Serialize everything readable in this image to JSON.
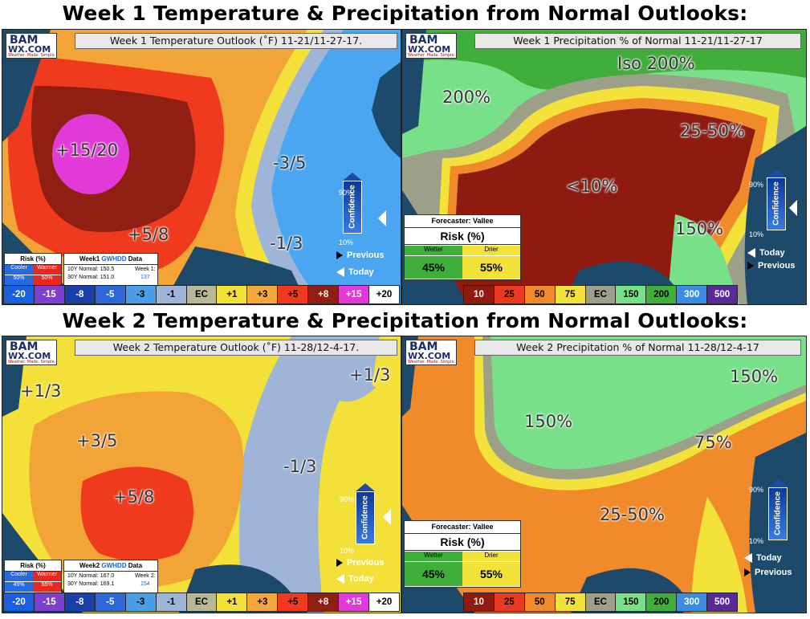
{
  "headings": {
    "week1": "Week 1 Temperature & Precipitation from Normal Outlooks:",
    "week2": "Week 2 Temperature & Precipitation from Normal Outlooks:"
  },
  "logo": {
    "line1": "BAM",
    "line2": "WX.COM",
    "tagline": "Weather. Made. Simple."
  },
  "panels": {
    "w1_temp": {
      "title": "Week 1 Temperature Outlook (˚F) 11-21/11-27-17.",
      "labels": [
        "+15/20",
        "+5/8",
        "-3/5",
        "-1/3"
      ],
      "risk": {
        "header": "Risk (%)",
        "cooler": "Cooler",
        "warmer": "Warmer",
        "cooler_val": "50%",
        "warmer_val": "50%"
      },
      "data": {
        "header_pre": "Week1 ",
        "header_hi": "GWHDD",
        "header_post": " Data",
        "n10": "10Y Normal: 150.5",
        "n30": "30Y Normal: 151.0",
        "wk_label": "Week 1:",
        "wk_val": "137"
      }
    },
    "w1_precip": {
      "title": "Week 1 Precipitation % of Normal 11-21/11-27-17",
      "labels": [
        "Iso 200%",
        "200%",
        "25-50%",
        "<10%",
        "150%"
      ],
      "forecaster": "Forecaster: Vallee",
      "risk_label": "Risk (%)",
      "wetter": "Wetter",
      "drier": "Drier",
      "wetter_val": "45%",
      "drier_val": "55%"
    },
    "w2_temp": {
      "title": "Week 2 Temperature Outlook (˚F) 11-28/12-4-17.",
      "labels": [
        "+1/3",
        "+3/5",
        "+5/8",
        "-1/3",
        "+1/3"
      ],
      "risk": {
        "header": "Risk (%)",
        "cooler": "Cooler",
        "warmer": "Warmer",
        "cooler_val": "45%",
        "warmer_val": "55%"
      },
      "data": {
        "header_pre": "Week2 ",
        "header_hi": "GWHDD",
        "header_post": " Data",
        "n10": "10Y Normal: 167.0",
        "n30": "30Y Normal: 169.1",
        "wk_label": "Week 2:",
        "wk_val": "154"
      }
    },
    "w2_precip": {
      "title": "Week 2 Precipitation % of Normal 11-28/12-4-17",
      "labels": [
        "150%",
        "150%",
        "75%",
        "25-50%"
      ],
      "forecaster": "Forecaster: Vallee",
      "risk_label": "Risk (%)",
      "wetter": "Wetter",
      "drier": "Drier",
      "wetter_val": "45%",
      "drier_val": "55%"
    }
  },
  "confidence": {
    "label": "Confidence",
    "high": "90%",
    "low": "10%",
    "previous": "Previous",
    "today": "Today"
  },
  "temp_scale": {
    "labels": [
      "-20",
      "-15",
      "-8",
      "-5",
      "-3",
      "-1",
      "EC",
      "+1",
      "+3",
      "+5",
      "+8",
      "+15",
      "+20"
    ],
    "colors": [
      "#1a5fe0",
      "#7d3fd0",
      "#1b3fa8",
      "#2e68d8",
      "#4a9ee8",
      "#9fb5d8",
      "#b8b898",
      "#f3e13a",
      "#f5a83a",
      "#f03a1e",
      "#8f1f12",
      "#e23ad8",
      "#ffffff"
    ]
  },
  "precip_scale": {
    "labels": [
      "10",
      "25",
      "50",
      "75",
      "EC",
      "150",
      "200",
      "300",
      "500"
    ],
    "colors": [
      "#8f1a10",
      "#e83a1e",
      "#f08a2a",
      "#f2e23a",
      "#9ca088",
      "#79e08a",
      "#3fae3a",
      "#3a8de0",
      "#5a2a9a"
    ]
  }
}
